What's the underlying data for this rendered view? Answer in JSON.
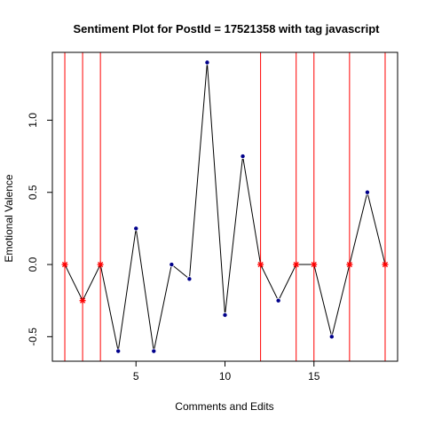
{
  "chart_data": {
    "type": "line",
    "title": "Sentiment Plot for PostId =  17521358  with tag  javascript",
    "xlabel": "Comments and Edits",
    "ylabel": "Emotional Valence",
    "xlim": [
      0.3,
      19.7
    ],
    "ylim": [
      -0.67,
      1.47
    ],
    "x_ticks": [
      5,
      10,
      15
    ],
    "y_ticks": [
      -0.5,
      0.0,
      0.5,
      1.0
    ],
    "y_tick_labels": [
      "-0.5",
      "0.0",
      "0.5",
      "1.0"
    ],
    "grid": false,
    "series": [
      {
        "x": [
          1,
          2,
          3,
          4,
          5,
          6,
          7,
          8,
          9,
          10,
          11,
          12,
          13,
          14,
          15,
          16,
          17,
          18,
          19
        ],
        "values": [
          0,
          -0.25,
          0,
          -0.6,
          0.25,
          -0.6,
          0,
          -0.1,
          1.4,
          -0.35,
          0.75,
          0,
          -0.25,
          0,
          0,
          -0.5,
          0,
          0.5,
          0
        ],
        "line_color": "#000000",
        "point_color": "#00008B"
      }
    ],
    "vertical_lines": {
      "x": [
        1,
        2,
        3,
        12,
        14,
        15,
        17,
        19
      ],
      "color": "#FF0000"
    },
    "highlight_marker_color": "#FF0000"
  }
}
